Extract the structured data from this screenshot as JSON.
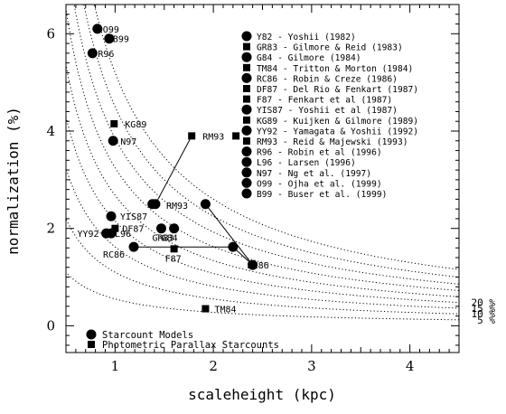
{
  "chart_data": {
    "type": "scatter",
    "xlabel": "scaleheight (kpc)",
    "ylabel": "normalization (%)",
    "xlim": [
      0.5,
      4.5
    ],
    "ylim": [
      -0.55,
      6.6
    ],
    "xticks": [
      "1",
      "2",
      "3",
      "4"
    ],
    "yticks": [
      "0",
      "2",
      "4",
      "6"
    ],
    "colors": {
      "ink": "#000000",
      "paper": "#ffffff"
    },
    "points": [
      {
        "label": "O99",
        "marker": "circle",
        "x": 0.82,
        "y": 6.1
      },
      {
        "label": "B99",
        "marker": "circle",
        "x": 0.94,
        "y": 5.9
      },
      {
        "label": "R96",
        "marker": "circle",
        "x": 0.77,
        "y": 5.6
      },
      {
        "label": "KG89",
        "marker": "square",
        "x": 0.99,
        "y": 4.15
      },
      {
        "label": "N97",
        "marker": "circle",
        "x": 0.98,
        "y": 3.8
      },
      {
        "label": "RM93",
        "marker": "square",
        "x": 1.78,
        "y": 3.9
      },
      {
        "label": "RM93",
        "marker": "circle",
        "x": 1.41,
        "y": 2.5
      },
      {
        "label": "YIS87",
        "marker": "circle",
        "x": 0.96,
        "y": 2.25
      },
      {
        "label": "YY92",
        "marker": "circle",
        "x": 0.91,
        "y": 1.9
      },
      {
        "label": "L96",
        "marker": "circle",
        "x": 0.96,
        "y": 1.9
      },
      {
        "label": "DF87",
        "marker": "square",
        "x": 1.0,
        "y": 2.0
      },
      {
        "label": "GR83",
        "marker": "circle",
        "x": 1.47,
        "y": 2.0
      },
      {
        "label": "G84",
        "marker": "circle",
        "x": 1.6,
        "y": 2.0
      },
      {
        "label": "RC86",
        "marker": "circle",
        "x": 1.19,
        "y": 1.62
      },
      {
        "label": "F87",
        "marker": "square",
        "x": 1.6,
        "y": 1.58
      },
      {
        "label": "Y82",
        "marker": "circle",
        "x": 2.2,
        "y": 1.62
      },
      {
        "label": "TM84",
        "marker": "square",
        "x": 1.92,
        "y": 0.35
      },
      {
        "label": "RC86",
        "marker": "circle",
        "x": 2.4,
        "y": 1.25
      }
    ],
    "lines": [
      [
        [
          1.41,
          2.5
        ],
        [
          1.78,
          3.9
        ]
      ],
      [
        [
          1.19,
          1.62
        ],
        [
          2.2,
          1.62
        ],
        [
          2.4,
          1.25
        ]
      ],
      [
        [
          1.92,
          2.5
        ],
        [
          2.4,
          1.25
        ]
      ]
    ],
    "extra_points": [
      {
        "marker": "circle",
        "x": 1.38,
        "y": 2.5
      },
      {
        "marker": "circle",
        "x": 1.92,
        "y": 2.5
      },
      {
        "marker": "square",
        "x": 2.23,
        "y": 3.9
      }
    ],
    "curves": [
      {
        "label": "20 %",
        "k": 2.15
      },
      {
        "label": "15 %",
        "k": 1.62
      },
      {
        "label": "10 %",
        "k": 1.1
      },
      {
        "label": "5 %",
        "k": 0.55
      },
      {
        "label": "",
        "k": 2.68
      },
      {
        "label": "",
        "k": 3.25
      },
      {
        "label": "",
        "k": 3.85
      },
      {
        "label": "",
        "k": 4.5
      },
      {
        "label": "",
        "k": 5.2
      }
    ],
    "legend": [
      {
        "marker": "circle",
        "text": "Y82 - Yoshii (1982)"
      },
      {
        "marker": "square",
        "text": "GR83 - Gilmore & Reid (1983)"
      },
      {
        "marker": "circle",
        "text": "G84 - Gilmore (1984)"
      },
      {
        "marker": "square",
        "text": "TM84 - Tritton & Morton (1984)"
      },
      {
        "marker": "circle",
        "text": "RC86 - Robin & Creze (1986)"
      },
      {
        "marker": "square",
        "text": "DF87 - Del Rio & Fenkart (1987)"
      },
      {
        "marker": "square",
        "text": "F87 - Fenkart et al (1987)"
      },
      {
        "marker": "circle",
        "text": "YIS87 - Yoshii et al (1987)"
      },
      {
        "marker": "square",
        "text": "KG89 - Kuijken & Gilmore (1989)"
      },
      {
        "marker": "circle",
        "text": "YY92 - Yamagata & Yoshii (1992)"
      },
      {
        "marker": "square",
        "text": "RM93 - Reid & Majewski (1993)"
      },
      {
        "marker": "circle",
        "text": "R96 - Robin et al (1996)"
      },
      {
        "marker": "circle",
        "text": "L96 - Larsen (1996)"
      },
      {
        "marker": "circle",
        "text": "N97 - Ng et al. (1997)"
      },
      {
        "marker": "circle",
        "text": "O99 - Ojha et al. (1999)"
      },
      {
        "marker": "circle",
        "text": "B99 - Buser et al. (1999)"
      }
    ],
    "key": [
      {
        "marker": "circle",
        "text": "Starcount Models"
      },
      {
        "marker": "square",
        "text": "Photometric Parallax Starcounts"
      }
    ]
  }
}
